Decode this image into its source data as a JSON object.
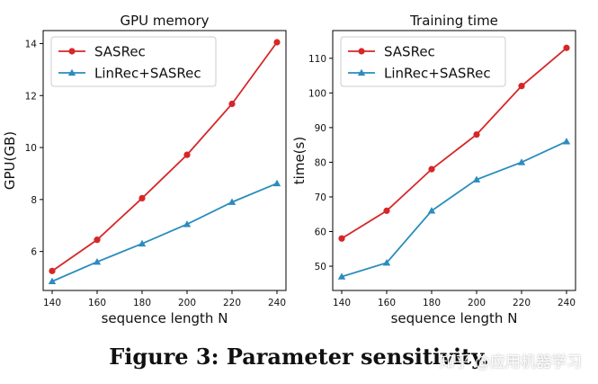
{
  "chart_data": [
    {
      "type": "line",
      "title": "GPU memory",
      "xlabel": "sequence length N",
      "ylabel": "GPU(GB)",
      "x": [
        140,
        160,
        180,
        200,
        220,
        240
      ],
      "xticks": [
        "140",
        "160",
        "180",
        "200",
        "220",
        "240"
      ],
      "xlim": [
        136,
        244
      ],
      "yticks": [
        "6",
        "8",
        "10",
        "12",
        "14"
      ],
      "ylim": [
        4.5,
        14.5
      ],
      "legend": "top-left",
      "series": [
        {
          "name": "SASRec",
          "color": "#d62728",
          "marker": "circle",
          "values": [
            5.25,
            6.45,
            8.05,
            9.72,
            11.68,
            14.05
          ]
        },
        {
          "name": "LinRec+SASRec",
          "color": "#2b8cbe",
          "marker": "triangle",
          "values": [
            4.85,
            5.6,
            6.3,
            7.05,
            7.9,
            8.62
          ]
        }
      ]
    },
    {
      "type": "line",
      "title": "Training time",
      "xlabel": "sequence length N",
      "ylabel": "time(s)",
      "x": [
        140,
        160,
        180,
        200,
        220,
        240
      ],
      "xticks": [
        "140",
        "160",
        "180",
        "200",
        "220",
        "240"
      ],
      "xlim": [
        136,
        244
      ],
      "yticks": [
        "50",
        "60",
        "70",
        "80",
        "90",
        "100",
        "110"
      ],
      "ylim": [
        43,
        118
      ],
      "legend": "top-left",
      "series": [
        {
          "name": "SASRec",
          "color": "#d62728",
          "marker": "circle",
          "values": [
            58,
            66,
            78,
            88,
            102,
            113
          ]
        },
        {
          "name": "LinRec+SASRec",
          "color": "#2b8cbe",
          "marker": "triangle",
          "values": [
            47,
            51,
            66,
            75,
            80,
            86
          ]
        }
      ]
    }
  ],
  "caption": "Figure 3: Parameter sensitivity.",
  "watermark": "知乎 @应用机器学习"
}
